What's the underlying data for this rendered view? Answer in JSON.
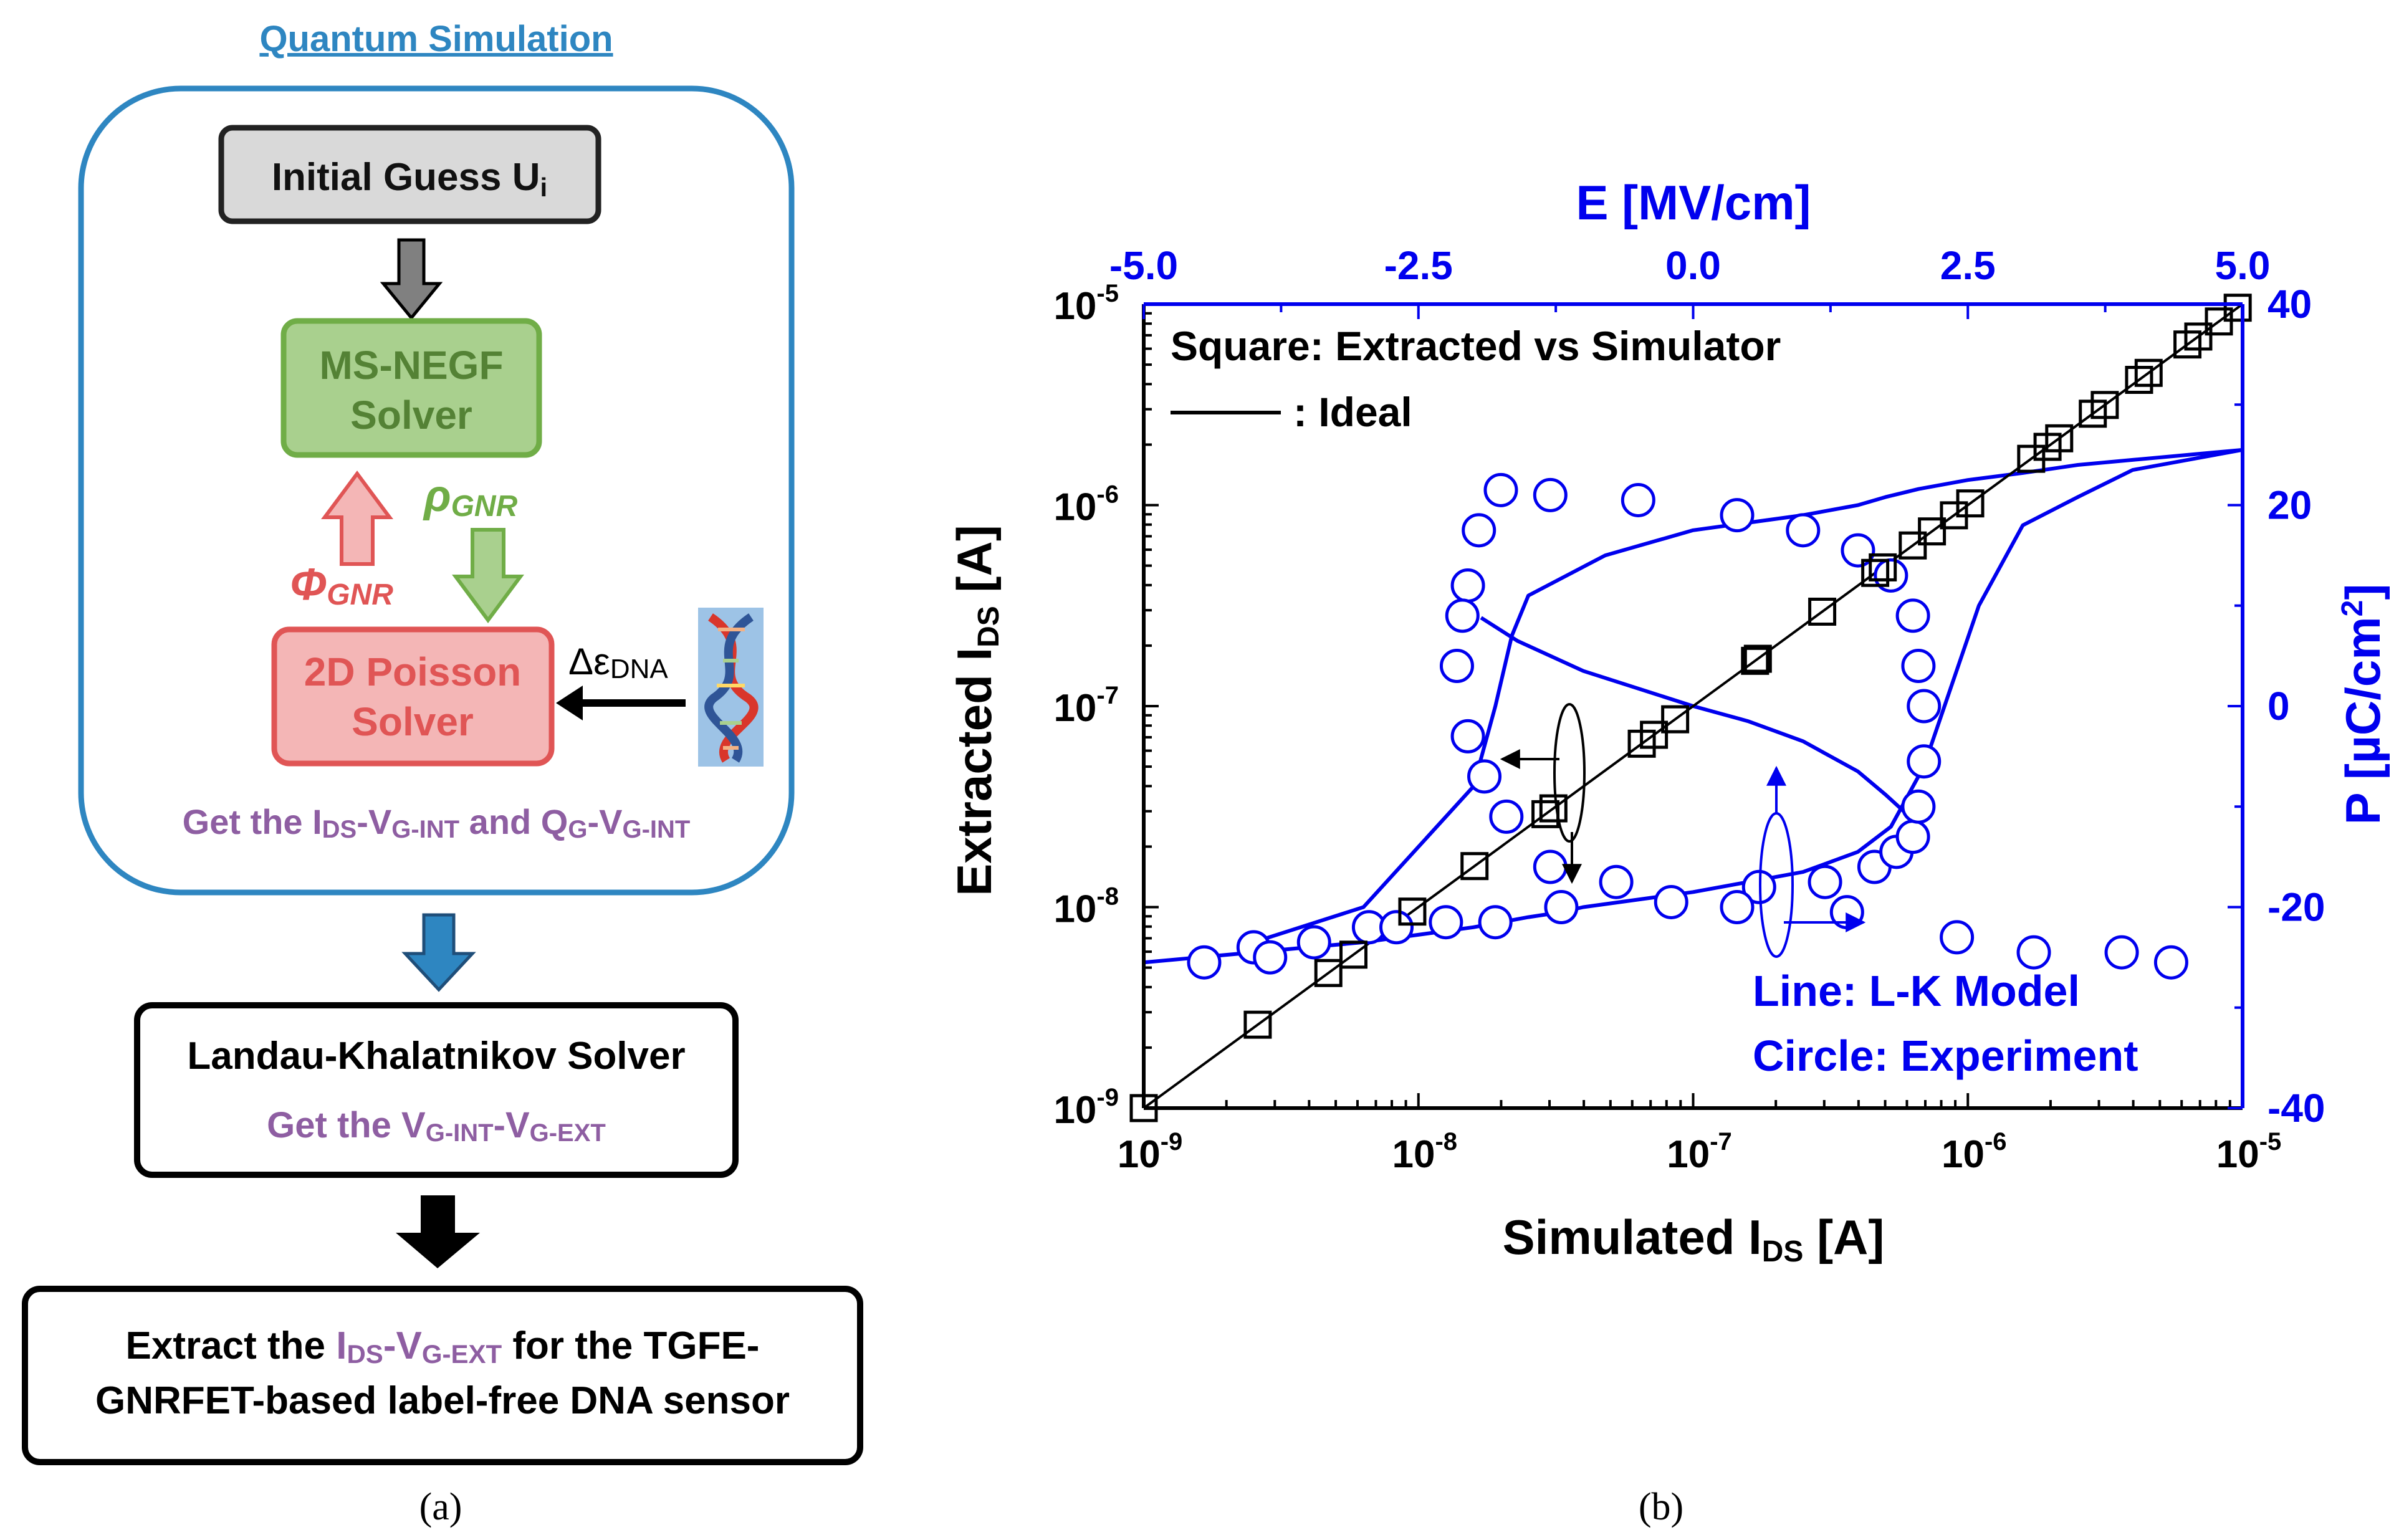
{
  "panel_a": {
    "title": "Quantum Simulation",
    "initial_guess": {
      "label": "Initial Guess U",
      "sub": "i"
    },
    "negf": {
      "line1": "MS-NEGF",
      "line2": "Solver"
    },
    "poisson": {
      "line1": "2D Poisson",
      "line2": "Solver"
    },
    "phi": {
      "symbol": "Φ",
      "sub": "GNR"
    },
    "rho": {
      "symbol": "ρ",
      "sub": "GNR"
    },
    "delta_eps": {
      "symbol": "Δε",
      "sub": "DNA"
    },
    "get_line": {
      "p1": "Get the I",
      "s1": "DS",
      "p2": "-V",
      "s2": "G-INT",
      "p3": " and Q",
      "s3": "G",
      "p4": "-V",
      "s4": "G-INT"
    },
    "lk": {
      "title": "Landau-Khalatnikov Solver",
      "p1": "Get the V",
      "s1": "G-INT",
      "p2": "-V",
      "s2": "G-EXT"
    },
    "extract": {
      "p1": "Extract the ",
      "hp1": "I",
      "hs1": "DS",
      "hp2": "-V",
      "hs2": "G-EXT",
      "p2": " for the TGFE-",
      "line2": "GNRFET-based label-free DNA sensor"
    },
    "caption": "(a)",
    "colors": {
      "blue": "#2e86c1",
      "green_fill": "#a9d08e",
      "green_stroke": "#70ad47",
      "red_fill": "#f4b6b6",
      "red_stroke": "#e05555",
      "purple": "#8e5ea2"
    }
  },
  "panel_b": {
    "caption": "(b)",
    "legend": {
      "square": "Square: Extracted vs Simulator",
      "ideal": ": Ideal",
      "line": "Line:  L-K Model",
      "circle": "Circle: Experiment"
    },
    "colors": {
      "blue": "#0000ee",
      "black": "#000000"
    }
  },
  "chart_data": {
    "type": "scatter",
    "title": "",
    "xlabel": "Simulated I",
    "xlabel_sub": "DS",
    "xlabel_unit": " [A]",
    "ylabel": "Extracted I",
    "ylabel_sub": "DS",
    "ylabel_unit": " [A]",
    "x2label": "E [MV/cm]",
    "y2label": "P [µC/cm",
    "y2label_sup": "2",
    "y2label_end": "]",
    "x_log_range": [
      -9,
      -5
    ],
    "y_log_range": [
      -9,
      -5
    ],
    "x2_range": [
      -5.0,
      5.0
    ],
    "y2_range": [
      -40,
      40
    ],
    "x_ticks": [
      {
        "base": "10",
        "exp": "-9"
      },
      {
        "base": "10",
        "exp": "-8"
      },
      {
        "base": "10",
        "exp": "-7"
      },
      {
        "base": "10",
        "exp": "-6"
      },
      {
        "base": "10",
        "exp": "-5"
      }
    ],
    "y_ticks": [
      {
        "base": "10",
        "exp": "-9"
      },
      {
        "base": "10",
        "exp": "-8"
      },
      {
        "base": "10",
        "exp": "-7"
      },
      {
        "base": "10",
        "exp": "-6"
      },
      {
        "base": "10",
        "exp": "-5"
      }
    ],
    "x2_ticks": [
      "-5.0",
      "-2.5",
      "0.0",
      "2.5",
      "5.0"
    ],
    "y2_ticks": [
      "-40",
      "-20",
      "0",
      "20",
      "40"
    ],
    "ideal_line": {
      "name": "Ideal",
      "x": [
        1e-09,
        1e-05
      ],
      "y": [
        1e-09,
        1e-05
      ]
    },
    "squares": {
      "name": "Extracted vs Simulator",
      "x": [
        1e-09,
        2.6e-09,
        4.7e-09,
        5.8e-09,
        9.5e-09,
        1.6e-08,
        2.9e-08,
        3.1e-08,
        6.5e-08,
        7.2e-08,
        8.6e-08,
        1.68e-07,
        1.72e-07,
        2.95e-07,
        4.6e-07,
        4.9e-07,
        6.3e-07,
        7.4e-07,
        8.9e-07,
        1.02e-06,
        1.7e-06,
        1.95e-06,
        2.15e-06,
        2.85e-06,
        3.15e-06,
        4.2e-06,
        4.55e-06,
        6.3e-06,
        6.9e-06,
        8.2e-06,
        9.6e-06
      ],
      "y": [
        1e-09,
        2.6e-09,
        4.7e-09,
        5.8e-09,
        9.5e-09,
        1.6e-08,
        2.9e-08,
        3.1e-08,
        6.5e-08,
        7.2e-08,
        8.6e-08,
        1.68e-07,
        1.72e-07,
        2.95e-07,
        4.6e-07,
        4.9e-07,
        6.3e-07,
        7.4e-07,
        8.9e-07,
        1.02e-06,
        1.7e-06,
        1.95e-06,
        2.15e-06,
        2.85e-06,
        3.15e-06,
        4.2e-06,
        4.55e-06,
        6.3e-06,
        6.9e-06,
        8.2e-06,
        9.6e-06
      ]
    },
    "lk_model": {
      "name": "L-K Model",
      "E": [
        -5.0,
        -4.0,
        -3.0,
        -2.0,
        -1.5,
        -1.2,
        -1.0,
        0.0,
        1.0,
        1.5,
        1.8,
        2.1,
        2.6,
        3.0,
        3.5,
        4.0,
        5.0,
        4.5,
        4.0,
        3.5,
        3.0,
        2.5,
        2.05,
        1.75,
        1.5,
        1.0,
        0.0,
        -0.8,
        -1.5,
        -1.65,
        -1.8,
        -2.0,
        -3.0,
        -4.0
      ],
      "P": [
        -25.5,
        -24.5,
        -23.5,
        -22,
        -21,
        -20.5,
        -20,
        -18.5,
        -16.5,
        -14.5,
        -12,
        -6,
        10,
        18,
        20.8,
        23.5,
        25.5,
        25,
        24.5,
        24,
        23.2,
        22.5,
        21.6,
        20.8,
        20,
        19,
        17.5,
        15,
        11,
        7,
        0,
        -8,
        -20,
        -23.5
      ]
    },
    "lk_negative_branch": {
      "name": "L-K Model",
      "E": [
        -1.93,
        -1.6,
        -1.0,
        0.0,
        0.5,
        1.0,
        1.5,
        1.75,
        1.92
      ],
      "P": [
        8.8,
        6.5,
        3.5,
        0,
        -1.5,
        -3.5,
        -6.5,
        -8.8,
        -10.5
      ]
    },
    "experiment": {
      "name": "Experiment",
      "E": [
        -4.45,
        -4.0,
        -3.85,
        -3.45,
        -2.95,
        -2.7,
        -2.25,
        -1.8,
        -1.2,
        -0.2,
        0.6,
        1.2,
        1.65,
        1.85,
        2.0,
        2.05,
        2.1,
        2.1,
        2.05,
        2.0,
        1.8,
        1.5,
        1.0,
        0.4,
        -0.5,
        -1.3,
        -1.75,
        -1.95,
        -2.05,
        -2.1,
        -2.15,
        -2.05,
        -1.9,
        -1.7,
        -1.3,
        -0.7,
        0.4,
        1.4,
        2.4,
        3.1,
        3.9,
        4.35
      ],
      "P": [
        -25.5,
        -24,
        -25,
        -23.5,
        -22,
        -22,
        -21.5,
        -21.5,
        -20,
        -19.5,
        -18,
        -17.5,
        -16,
        -14.5,
        -13,
        -10,
        -5.5,
        0,
        4,
        9,
        13,
        15.5,
        17.5,
        19,
        20.5,
        21,
        21.5,
        17.5,
        12,
        9,
        4,
        -3,
        -7,
        -11,
        -16,
        -17.5,
        -20,
        -20.5,
        -23,
        -24.5,
        -24.5,
        -25.5
      ]
    }
  }
}
